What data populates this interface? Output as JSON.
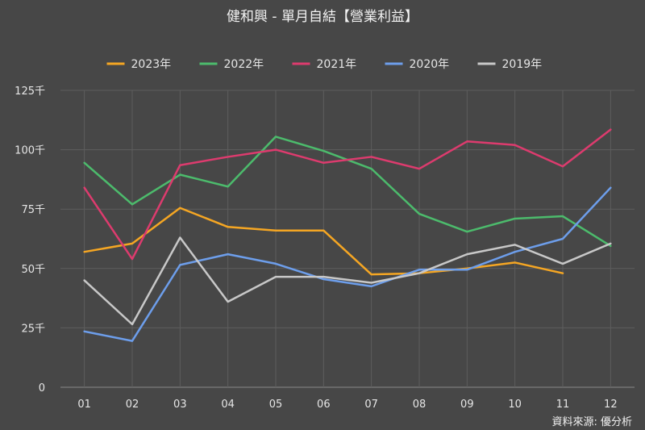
{
  "chart_data": {
    "type": "line",
    "title": "健和興 - 單月自結【營業利益】",
    "source": "資料來源: 優分析",
    "categories": [
      "01",
      "02",
      "03",
      "04",
      "05",
      "06",
      "07",
      "08",
      "09",
      "10",
      "11",
      "12"
    ],
    "y_ticks": [
      "0",
      "25千",
      "50千",
      "75千",
      "100千",
      "125千"
    ],
    "ylim": [
      0,
      125
    ],
    "grid": true,
    "legend_position": "top",
    "series": [
      {
        "name": "2023年",
        "color": "#f5a623",
        "values": [
          57,
          60.5,
          75.5,
          67.5,
          66,
          66,
          47.5,
          48,
          50,
          52.5,
          48,
          null
        ]
      },
      {
        "name": "2022年",
        "color": "#4cbb6c",
        "values": [
          94.5,
          77,
          89.5,
          84.5,
          105.5,
          99.5,
          92,
          73,
          65.5,
          71,
          72,
          59.5
        ]
      },
      {
        "name": "2021年",
        "color": "#dd3b6e",
        "values": [
          84,
          54,
          93.5,
          97,
          100,
          94.5,
          97,
          92,
          103.5,
          102,
          93,
          108.5
        ]
      },
      {
        "name": "2020年",
        "color": "#6d9eeb",
        "values": [
          23.5,
          19.5,
          51.5,
          56,
          52,
          45.5,
          42.5,
          49.5,
          49.5,
          57,
          62.5,
          84
        ]
      },
      {
        "name": "2019年",
        "color": "#c8c8c8",
        "values": [
          45,
          26.5,
          63,
          36,
          46.5,
          46.5,
          44,
          48,
          56,
          60,
          52,
          60.5
        ]
      }
    ]
  }
}
